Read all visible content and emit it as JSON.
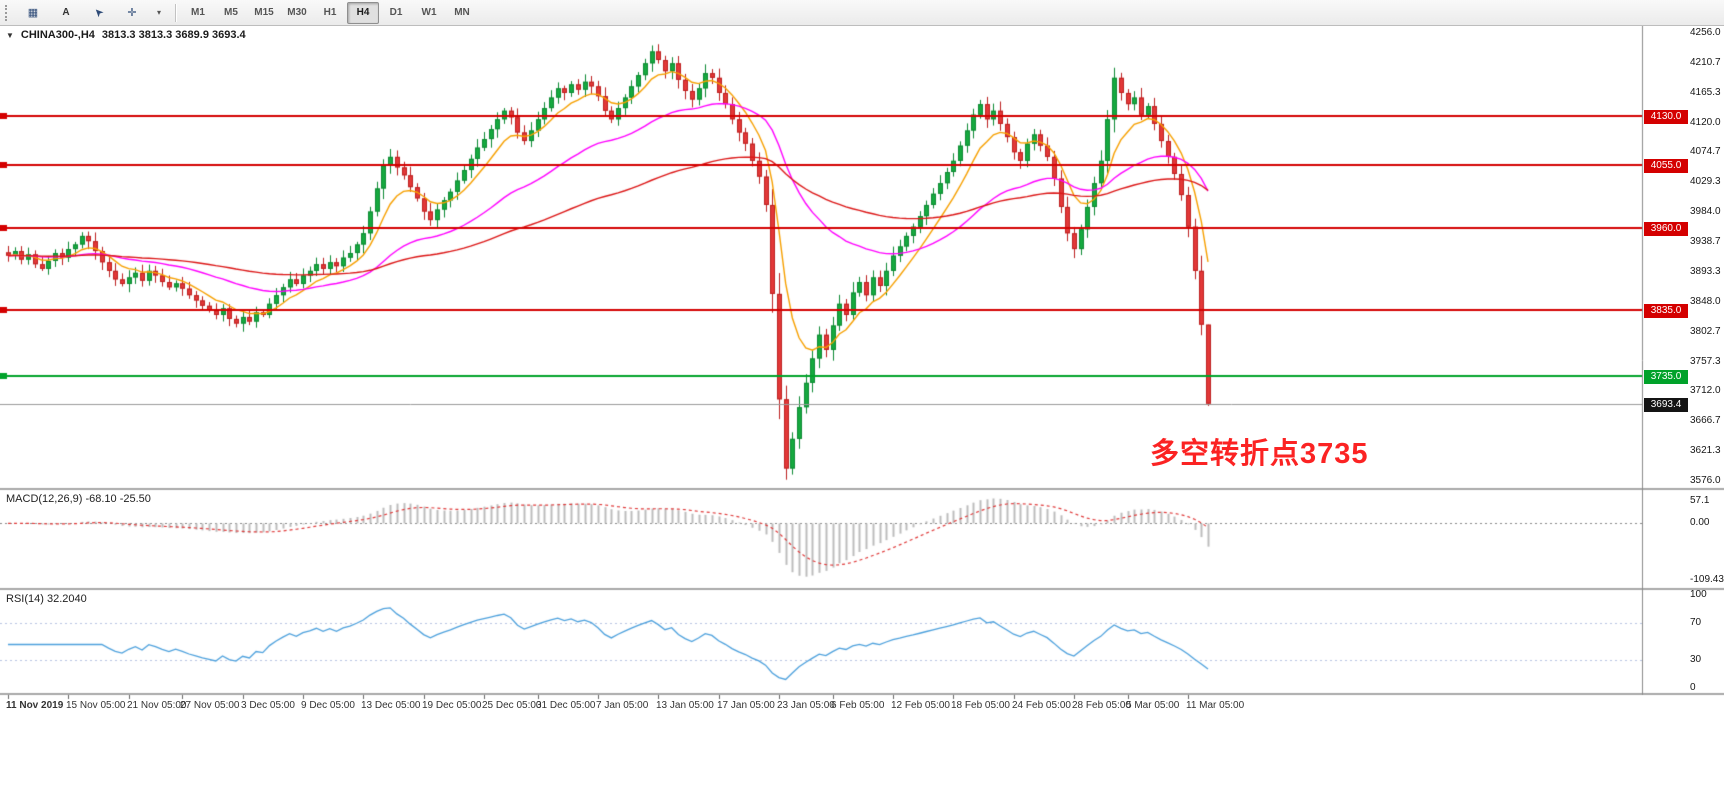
{
  "toolbar": {
    "text_tool_label": "A",
    "timeframes": [
      {
        "label": "M1",
        "selected": false
      },
      {
        "label": "M5",
        "selected": false
      },
      {
        "label": "M15",
        "selected": false
      },
      {
        "label": "M30",
        "selected": false
      },
      {
        "label": "H1",
        "selected": false
      },
      {
        "label": "H4",
        "selected": true
      },
      {
        "label": "D1",
        "selected": false
      },
      {
        "label": "W1",
        "selected": false
      },
      {
        "label": "MN",
        "selected": false
      }
    ]
  },
  "chart_data": {
    "type": "candlestick",
    "symbol": "CHINA300-",
    "timeframe": "H4",
    "main_title": {
      "symbol": "CHINA300-,H4",
      "ohlc": "3813.3 3813.3 3689.9 3693.4"
    },
    "ohlc_current": {
      "open": 3813.3,
      "high": 3813.3,
      "low": 3689.9,
      "close": 3693.4
    },
    "y_axis": {
      "max": 4256.0,
      "min": 3576.0,
      "labels": [
        "4256.0",
        "4210.7",
        "4165.3",
        "4120.0",
        "4074.7",
        "4029.3",
        "3984.0",
        "3938.7",
        "3893.3",
        "3848.0",
        "3802.7",
        "3757.3",
        "3712.0",
        "3666.7",
        "3621.3",
        "3576.0"
      ]
    },
    "x_labels": [
      "11 Nov 2019",
      "15 Nov 05:00",
      "21 Nov 05:00",
      "27 Nov 05:00",
      "3 Dec 05:00",
      "9 Dec 05:00",
      "13 Dec 05:00",
      "19 Dec 05:00",
      "25 Dec 05:00",
      "31 Dec 05:00",
      "7 Jan 05:00",
      "13 Jan 05:00",
      "17 Jan 05:00",
      "23 Jan 05:00",
      "6 Feb 05:00",
      "12 Feb 05:00",
      "18 Feb 05:00",
      "24 Feb 05:00",
      "28 Feb 05:00",
      "5 Mar 05:00",
      "11 Mar 05:00"
    ],
    "closes": [
      3918,
      3925,
      3912,
      3920,
      3905,
      3898,
      3910,
      3922,
      3915,
      3928,
      3935,
      3948,
      3940,
      3925,
      3908,
      3895,
      3882,
      3875,
      3885,
      3892,
      3880,
      3895,
      3888,
      3878,
      3870,
      3876,
      3868,
      3858,
      3850,
      3842,
      3835,
      3828,
      3838,
      3822,
      3815,
      3825,
      3818,
      3832,
      3828,
      3845,
      3858,
      3870,
      3882,
      3875,
      3888,
      3895,
      3905,
      3898,
      3908,
      3902,
      3915,
      3922,
      3935,
      3952,
      3985,
      4020,
      4055,
      4068,
      4052,
      4040,
      4022,
      4005,
      3985,
      3972,
      3988,
      4002,
      4015,
      4032,
      4048,
      4065,
      4082,
      4095,
      4110,
      4125,
      4138,
      4128,
      4105,
      4092,
      4108,
      4125,
      4142,
      4158,
      4172,
      4165,
      4178,
      4170,
      4182,
      4175,
      4160,
      4138,
      4125,
      4142,
      4158,
      4175,
      4192,
      4210,
      4228,
      4215,
      4198,
      4210,
      4185,
      4168,
      4155,
      4172,
      4195,
      4188,
      4165,
      4148,
      4125,
      4105,
      4088,
      4062,
      4038,
      3995,
      3860,
      3700,
      3595,
      3640,
      3688,
      3725,
      3762,
      3798,
      3775,
      3812,
      3845,
      3828,
      3862,
      3878,
      3858,
      3885,
      3872,
      3895,
      3918,
      3932,
      3948,
      3962,
      3978,
      3995,
      4012,
      4028,
      4045,
      4062,
      4085,
      4108,
      4132,
      4148,
      4125,
      4138,
      4118,
      4098,
      4075,
      4062,
      4088,
      4102,
      4085,
      4068,
      4035,
      3992,
      3952,
      3928,
      3958,
      3992,
      4028,
      4062,
      4125,
      4188,
      4165,
      4148,
      4158,
      4132,
      4145,
      4118,
      4092,
      4068,
      4042,
      4010,
      3962,
      3895,
      3813.3,
      3693.4
    ],
    "colors": {
      "up": "#16a93f",
      "up_border": "#0d8a33",
      "down": "#e23838",
      "down_border": "#bd2020"
    },
    "moving_averages": [
      {
        "name": "fast-ma",
        "period": 8,
        "color": "#f7a000"
      },
      {
        "name": "medium-ma",
        "period": 34,
        "color": "#ff00ff"
      },
      {
        "name": "slow-ma",
        "period": 89,
        "color": "#dc1616"
      }
    ],
    "hlines": [
      {
        "price": 4130.0,
        "label": "4130.0",
        "color": "#d40000"
      },
      {
        "price": 4055.0,
        "label": "4055.0",
        "color": "#d40000"
      },
      {
        "price": 3960.0,
        "label": "3960.0",
        "color": "#d40000"
      },
      {
        "price": 3835.0,
        "label": "3835.0",
        "color": "#d40000"
      },
      {
        "price": 3735.0,
        "label": "3735.0",
        "color": "#00a22a"
      }
    ],
    "current_price_line": {
      "price": 3693.4,
      "label": "3693.4",
      "bg": "#141414",
      "line_color": "#9a9a9a"
    },
    "annotation": {
      "text": "多空转折点3735",
      "color": "#fb2323"
    },
    "indicators": {
      "macd": {
        "title": "MACD(12,26,9) -68.10 -25.50",
        "fast": 12,
        "slow": 26,
        "signal": 9,
        "axis_labels": [
          "57.1",
          "0.00",
          "-109.43"
        ],
        "histogram_color": "#bdbdbd",
        "signal_color": "#e03a3a"
      },
      "rsi": {
        "title": "RSI(14) 32.2040",
        "period": 14,
        "levels": [
          70,
          30
        ],
        "axis_labels": [
          "100",
          "70",
          "30",
          "0"
        ],
        "line_color": "#4da1dd",
        "level_color": "#b9c5e2"
      }
    }
  }
}
